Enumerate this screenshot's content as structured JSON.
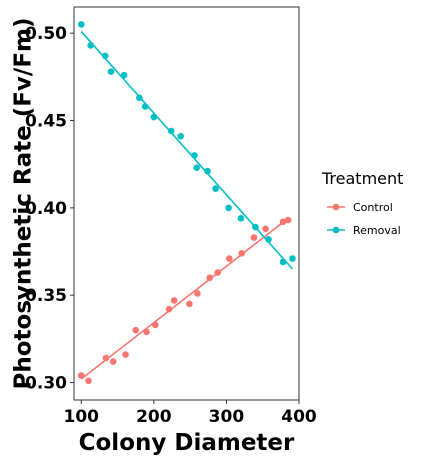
{
  "chart_data": {
    "type": "scatter",
    "title": "",
    "xlabel": "Colony Diameter",
    "ylabel": "Photosynthetic Rate (Fv/Fm)",
    "xlim": [
      90,
      400
    ],
    "ylim": [
      0.29,
      0.515
    ],
    "x_ticks": [
      100,
      200,
      300,
      400
    ],
    "y_ticks": [
      0.3,
      0.35,
      0.4,
      0.45,
      0.5
    ],
    "x_tick_labels": [
      "100",
      "200",
      "300",
      "400"
    ],
    "y_tick_labels": [
      "0.30",
      "0.35",
      "0.40",
      "0.45",
      "0.50"
    ],
    "grid": false,
    "legend": {
      "title": "Treatment",
      "position": "right"
    },
    "series": [
      {
        "name": "Control",
        "color": "#F8766D",
        "x": [
          100,
          110,
          134,
          144,
          161,
          175,
          190,
          202,
          221,
          228,
          249,
          260,
          277,
          288,
          304,
          321,
          338,
          354,
          378,
          385
        ],
        "y": [
          0.304,
          0.301,
          0.314,
          0.312,
          0.316,
          0.33,
          0.329,
          0.333,
          0.342,
          0.347,
          0.345,
          0.351,
          0.36,
          0.363,
          0.371,
          0.374,
          0.383,
          0.388,
          0.392,
          0.393
        ],
        "trend": {
          "x": [
            100,
            385
          ],
          "y": [
            0.302,
            0.394
          ]
        }
      },
      {
        "name": "Removal",
        "color": "#00BFC4",
        "x": [
          100,
          113,
          133,
          141,
          159,
          180,
          188,
          200,
          224,
          237,
          256,
          259,
          274,
          285,
          303,
          320,
          340,
          358,
          378,
          391
        ],
        "y": [
          0.505,
          0.493,
          0.487,
          0.478,
          0.476,
          0.463,
          0.458,
          0.452,
          0.444,
          0.441,
          0.43,
          0.423,
          0.421,
          0.411,
          0.4,
          0.394,
          0.389,
          0.382,
          0.369,
          0.371
        ],
        "trend": {
          "x": [
            100,
            391
          ],
          "y": [
            0.501,
            0.365
          ]
        }
      }
    ]
  }
}
